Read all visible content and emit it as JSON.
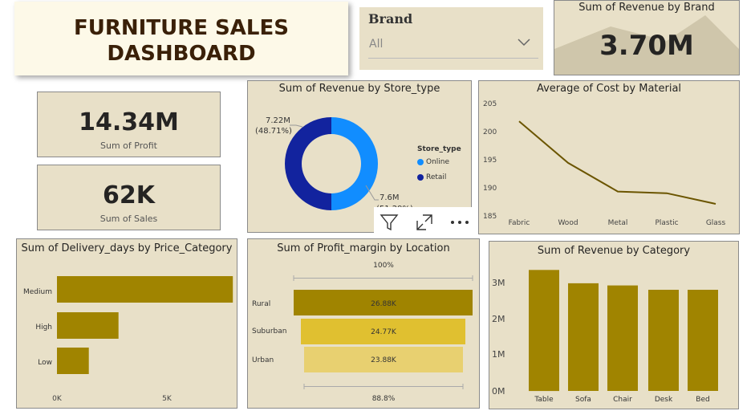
{
  "header": {
    "line1": "FURNITURE SALES",
    "line2": "DASHBOARD"
  },
  "brand_slicer": {
    "label": "Brand",
    "value": "All"
  },
  "kpis": {
    "revenue_brand": {
      "title": "Sum of Revenue by Brand",
      "value": "3.70M"
    },
    "profit": {
      "value": "14.34M",
      "label": "Sum of Profit"
    },
    "sales": {
      "value": "62K",
      "label": "Sum of Sales"
    }
  },
  "visual_header_icons": [
    "filter-icon",
    "focus-mode-icon",
    "more-options-icon"
  ],
  "colors": {
    "bg": "#e8e0c8",
    "gold": "#a08400",
    "gold_mid": "#e0c030",
    "gold_light": "#e8d070",
    "online": "#118dff",
    "retail": "#12239e",
    "line": "#6b5500"
  },
  "charts": {
    "store_type": {
      "title": "Sum of Revenue by Store_type",
      "legend_title": "Store_type",
      "labels": {
        "retail": "7.22M",
        "retail_pct": "(48.71%)",
        "online": "7.6M",
        "online_pct": "(51.29%)"
      }
    },
    "cost_material": {
      "title": "Average of Cost by Material",
      "yticks": [
        "205",
        "200",
        "195",
        "190",
        "185"
      ],
      "categories": [
        "Fabric",
        "Wood",
        "Metal",
        "Plastic",
        "Glass"
      ]
    },
    "delivery": {
      "title": "Sum of Delivery_days by Price_Category",
      "categories": [
        "Medium",
        "High",
        "Low"
      ],
      "xticks": [
        "0K",
        "5K"
      ]
    },
    "profit_margin": {
      "title": "Sum of Profit_margin by Location",
      "top_label": "100%",
      "bottom_label": "88.8%",
      "categories": [
        "Rural",
        "Suburban",
        "Urban"
      ],
      "value_labels": [
        "26.88K",
        "24.77K",
        "23.88K"
      ]
    },
    "revenue_category": {
      "title": "Sum of Revenue by Category",
      "yticks": [
        "3M",
        "2M",
        "1M",
        "0M"
      ],
      "categories": [
        "Table",
        "Sofa",
        "Chair",
        "Desk",
        "Bed"
      ]
    }
  },
  "chart_data": [
    {
      "type": "pie",
      "title": "Sum of Revenue by Store_type",
      "categories": [
        "Online",
        "Retail"
      ],
      "values": [
        7.6,
        7.22
      ],
      "unit": "M"
    },
    {
      "type": "line",
      "title": "Average of Cost by Material",
      "categories": [
        "Fabric",
        "Wood",
        "Metal",
        "Plastic",
        "Glass"
      ],
      "values": [
        201.7,
        194.3,
        189.2,
        188.9,
        187.0
      ],
      "ylim": [
        185,
        205
      ]
    },
    {
      "type": "bar",
      "title": "Sum of Delivery_days by Price_Category",
      "categories": [
        "Medium",
        "High",
        "Low"
      ],
      "values": [
        8000,
        2800,
        1450
      ]
    },
    {
      "type": "bar",
      "title": "Sum of Profit_margin by Location",
      "categories": [
        "Rural",
        "Suburban",
        "Urban"
      ],
      "values": [
        26880,
        24770,
        23880
      ]
    },
    {
      "type": "bar",
      "title": "Sum of Revenue by Category",
      "categories": [
        "Table",
        "Sofa",
        "Chair",
        "Desk",
        "Bed"
      ],
      "values": [
        3.35,
        2.98,
        2.92,
        2.8,
        2.8
      ],
      "ylim": [
        0,
        3.5
      ]
    }
  ]
}
